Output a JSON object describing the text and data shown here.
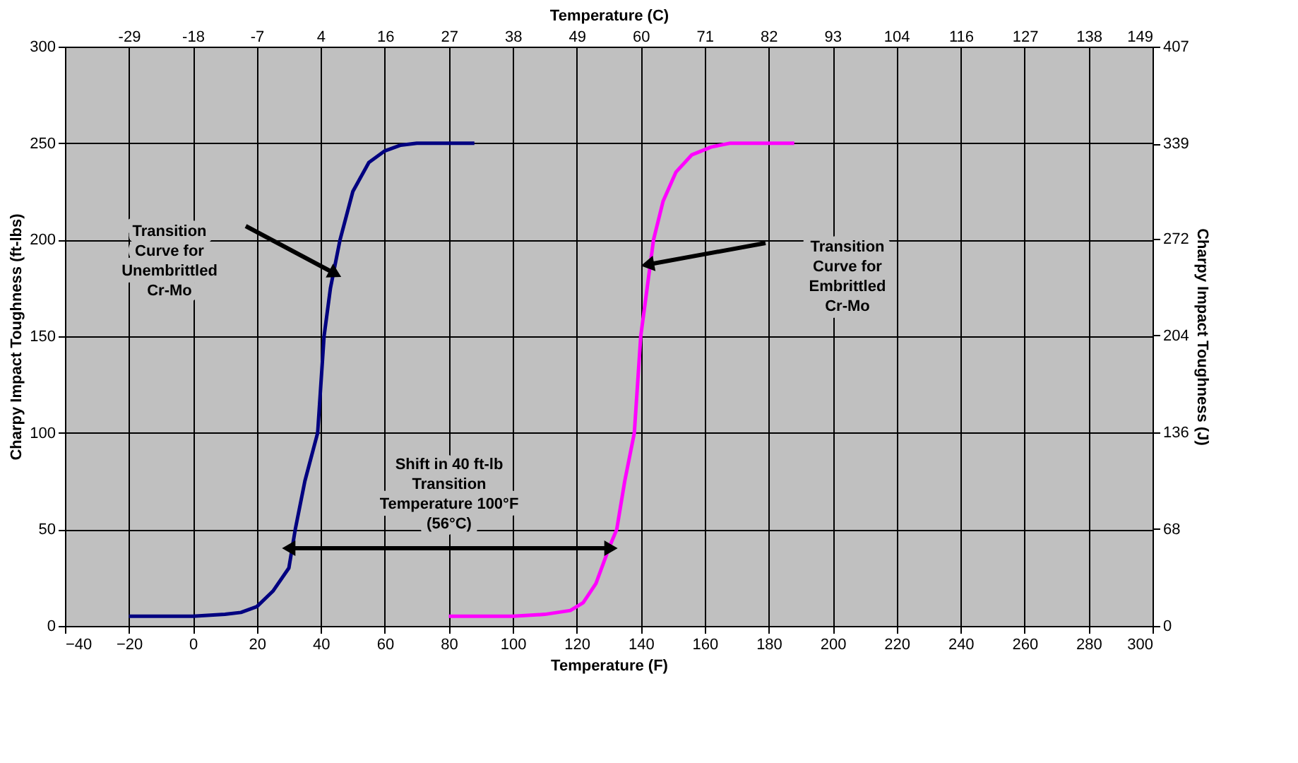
{
  "chart_data": {
    "type": "line",
    "xlabel": "Temperature (F)",
    "x2label": "Temperature (C)",
    "ylabel": "Charpy Impact Toughness (ft-lbs)",
    "y2label": "Charpy Impact Toughness (J)",
    "xlim": [
      -40,
      300
    ],
    "xticks": [
      -40,
      -20,
      0,
      20,
      40,
      60,
      80,
      100,
      120,
      140,
      160,
      180,
      200,
      220,
      240,
      260,
      280,
      300
    ],
    "x2lim": [
      -40,
      148.9
    ],
    "x2ticks": [
      {
        "value": -28.9,
        "label": "-29"
      },
      {
        "value": -17.8,
        "label": "-18"
      },
      {
        "value": -6.7,
        "label": "-7"
      },
      {
        "value": 4.4,
        "label": "4"
      },
      {
        "value": 15.6,
        "label": "16"
      },
      {
        "value": 26.7,
        "label": "27"
      },
      {
        "value": 37.8,
        "label": "38"
      },
      {
        "value": 48.9,
        "label": "49"
      },
      60,
      {
        "value": 71.1,
        "label": "71"
      },
      {
        "value": 82.2,
        "label": "82"
      },
      {
        "value": 93.3,
        "label": "93"
      },
      {
        "value": 104.4,
        "label": "104"
      },
      {
        "value": 115.6,
        "label": "116"
      },
      {
        "value": 126.7,
        "label": "127"
      },
      {
        "value": 137.8,
        "label": "138"
      },
      {
        "value": 148.9,
        "label": "149"
      }
    ],
    "ylim": [
      0,
      300
    ],
    "yticks": [
      0,
      50,
      100,
      150,
      200,
      250,
      300
    ],
    "y2lim": [
      0,
      407
    ],
    "y2ticks": [
      0,
      68,
      136,
      204,
      272,
      339,
      407
    ],
    "grid": true,
    "legend": false,
    "marker": "none",
    "line_style": "solid",
    "series": [
      {
        "color": "#000080",
        "x": [
          -20,
          0,
          10,
          15,
          20,
          25,
          30,
          32,
          35,
          39,
          41,
          43,
          46,
          50,
          55,
          60,
          65,
          70,
          88
        ],
        "values": [
          5,
          5,
          6,
          7,
          10,
          18,
          30,
          50,
          75,
          100,
          150,
          175,
          200,
          225,
          240,
          246,
          249,
          250,
          250
        ]
      },
      {
        "color": "#ff00ff",
        "x": [
          80,
          100,
          110,
          118,
          122,
          126,
          130,
          132.5,
          135,
          138,
          140,
          142,
          144,
          147,
          151,
          156,
          162,
          168,
          188
        ],
        "values": [
          5,
          5,
          6,
          8,
          12,
          22,
          40,
          50,
          75,
          100,
          150,
          175,
          200,
          220,
          235,
          244,
          248,
          250,
          250
        ]
      }
    ],
    "annotations": [
      "Transition\nCurve for\nUnembrittled\nCr-Mo",
      "Transition\nCurve for\nEmbrittled\nCr-Mo",
      "Shift in 40 ft-lb\nTransition\nTemperature 100°F\n(56°C)"
    ]
  }
}
